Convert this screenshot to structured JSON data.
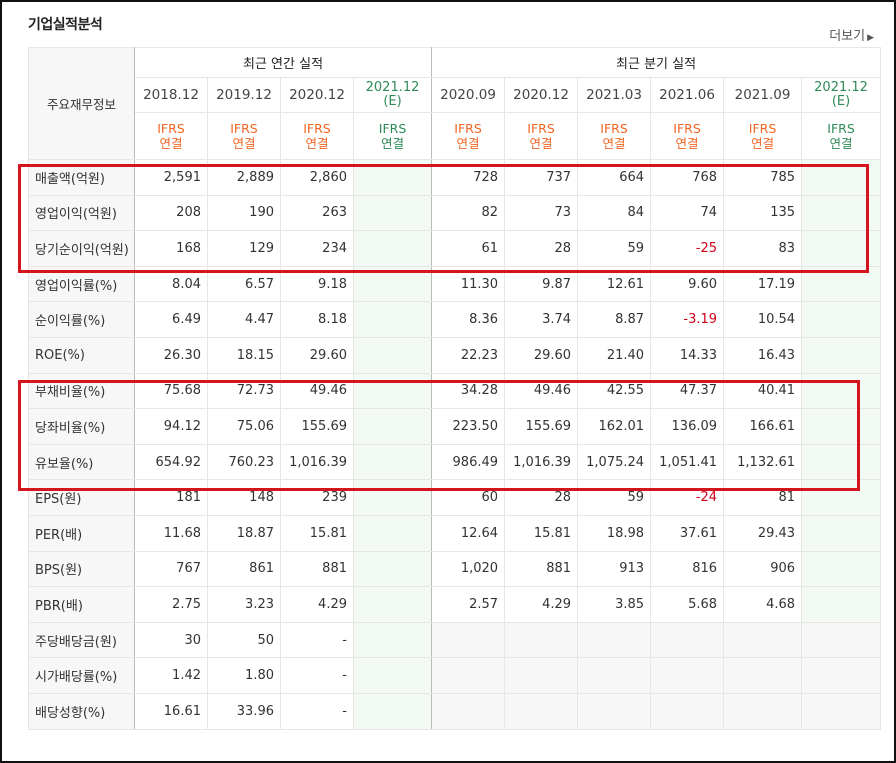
{
  "title": "기업실적분석",
  "more_label": "더보기",
  "header": {
    "corner_label": "주요재무정보",
    "annual_group": "최근 연간 실적",
    "quarter_group": "최근 분기 실적",
    "periods": [
      "2018.12",
      "2019.12",
      "2020.12",
      "2021.12",
      "2020.09",
      "2020.12",
      "2021.03",
      "2021.06",
      "2021.09",
      "2021.12"
    ],
    "estimate_mark": "(E)",
    "ifrs_line1": "IFRS",
    "ifrs_line2": "연결"
  },
  "rows": [
    {
      "label": "매출액(억원)",
      "values": [
        "2,591",
        "2,889",
        "2,860",
        "",
        "728",
        "737",
        "664",
        "768",
        "785",
        ""
      ]
    },
    {
      "label": "영업이익(억원)",
      "values": [
        "208",
        "190",
        "263",
        "",
        "82",
        "73",
        "84",
        "74",
        "135",
        ""
      ]
    },
    {
      "label": "당기순이익(억원)",
      "values": [
        "168",
        "129",
        "234",
        "",
        "61",
        "28",
        "59",
        "-25",
        "83",
        ""
      ]
    },
    {
      "label": "영업이익률(%)",
      "values": [
        "8.04",
        "6.57",
        "9.18",
        "",
        "11.30",
        "9.87",
        "12.61",
        "9.60",
        "17.19",
        ""
      ]
    },
    {
      "label": "순이익률(%)",
      "values": [
        "6.49",
        "4.47",
        "8.18",
        "",
        "8.36",
        "3.74",
        "8.87",
        "-3.19",
        "10.54",
        ""
      ]
    },
    {
      "label": "ROE(%)",
      "values": [
        "26.30",
        "18.15",
        "29.60",
        "",
        "22.23",
        "29.60",
        "21.40",
        "14.33",
        "16.43",
        ""
      ]
    },
    {
      "label": "부채비율(%)",
      "values": [
        "75.68",
        "72.73",
        "49.46",
        "",
        "34.28",
        "49.46",
        "42.55",
        "47.37",
        "40.41",
        ""
      ]
    },
    {
      "label": "당좌비율(%)",
      "values": [
        "94.12",
        "75.06",
        "155.69",
        "",
        "223.50",
        "155.69",
        "162.01",
        "136.09",
        "166.61",
        ""
      ]
    },
    {
      "label": "유보율(%)",
      "values": [
        "654.92",
        "760.23",
        "1,016.39",
        "",
        "986.49",
        "1,016.39",
        "1,075.24",
        "1,051.41",
        "1,132.61",
        ""
      ]
    },
    {
      "label": "EPS(원)",
      "values": [
        "181",
        "148",
        "239",
        "",
        "60",
        "28",
        "59",
        "-24",
        "81",
        ""
      ]
    },
    {
      "label": "PER(배)",
      "values": [
        "11.68",
        "18.87",
        "15.81",
        "",
        "12.64",
        "15.81",
        "18.98",
        "37.61",
        "29.43",
        ""
      ]
    },
    {
      "label": "BPS(원)",
      "values": [
        "767",
        "861",
        "881",
        "",
        "1,020",
        "881",
        "913",
        "816",
        "906",
        ""
      ]
    },
    {
      "label": "PBR(배)",
      "values": [
        "2.75",
        "3.23",
        "4.29",
        "",
        "2.57",
        "4.29",
        "3.85",
        "5.68",
        "4.68",
        ""
      ]
    },
    {
      "label": "주당배당금(원)",
      "values": [
        "30",
        "50",
        "-",
        "",
        "",
        "",
        "",
        "",
        "",
        ""
      ]
    },
    {
      "label": "시가배당률(%)",
      "values": [
        "1.42",
        "1.80",
        "-",
        "",
        "",
        "",
        "",
        "",
        "",
        ""
      ]
    },
    {
      "label": "배당성향(%)",
      "values": [
        "16.61",
        "33.96",
        "-",
        "",
        "",
        "",
        "",
        "",
        "",
        ""
      ]
    }
  ],
  "colors": {
    "highlight_box": "#d4151d",
    "ifrs": "#f26522",
    "estimate": "#2e8b57",
    "negative": "#d0021b"
  }
}
